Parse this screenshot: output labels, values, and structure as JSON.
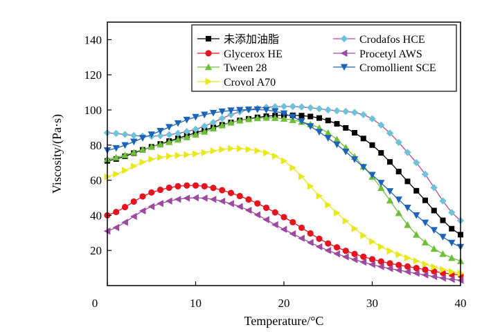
{
  "chart_data": {
    "type": "line",
    "title": "",
    "xlabel": "Temperature/°C",
    "ylabel": "Viscosity/(Pa·s)",
    "xlim": [
      0,
      40
    ],
    "ylim": [
      0,
      150
    ],
    "x_ticks": [
      "0",
      "10",
      "20",
      "30",
      "40"
    ],
    "y_ticks": [
      "20",
      "40",
      "60",
      "80",
      "100",
      "120",
      "140"
    ],
    "grid": false,
    "legend_placement": "top-right",
    "x": [
      0,
      5,
      10,
      15,
      20,
      25,
      30,
      35,
      40
    ],
    "series": [
      {
        "name": "未添加油脂",
        "marker": "square",
        "color": "#000000",
        "line_color": "#000000",
        "values": [
          71,
          79,
          87,
          94,
          97,
          94,
          80,
          54,
          29
        ]
      },
      {
        "name": "Crodafos HCE",
        "marker": "diamond",
        "color": "#6fc3d8",
        "line_color": "#b04a9a",
        "values": [
          87,
          85,
          89,
          99,
          102,
          100,
          95,
          70,
          37
        ]
      },
      {
        "name": "Glycerox HE",
        "marker": "circle",
        "color": "#e5141e",
        "line_color": "#e5141e",
        "values": [
          40,
          53,
          57,
          51,
          39,
          24,
          15,
          10,
          6
        ]
      },
      {
        "name": "Procetyl AWS",
        "marker": "triangle-left",
        "color": "#9c4a9f",
        "line_color": "#9c4a9f",
        "values": [
          31,
          45,
          50,
          45,
          32,
          20,
          12,
          7,
          3
        ]
      },
      {
        "name": "Tween 28",
        "marker": "triangle-up",
        "color": "#6fbf3a",
        "line_color": "#6fbf3a",
        "values": [
          72,
          79,
          86,
          94,
          95,
          87,
          62,
          29,
          14
        ]
      },
      {
        "name": "Crovol A70",
        "marker": "triangle-right",
        "color": "#e8e81e",
        "line_color": "#e8e81e",
        "values": [
          62,
          72,
          75,
          78,
          71,
          46,
          25,
          14,
          7
        ]
      },
      {
        "name": "Cromollient SCE",
        "marker": "triangle-down",
        "color": "#1c64b8",
        "line_color": "#1c64b8",
        "values": [
          77,
          86,
          96,
          100,
          98,
          84,
          63,
          40,
          22
        ]
      }
    ]
  }
}
